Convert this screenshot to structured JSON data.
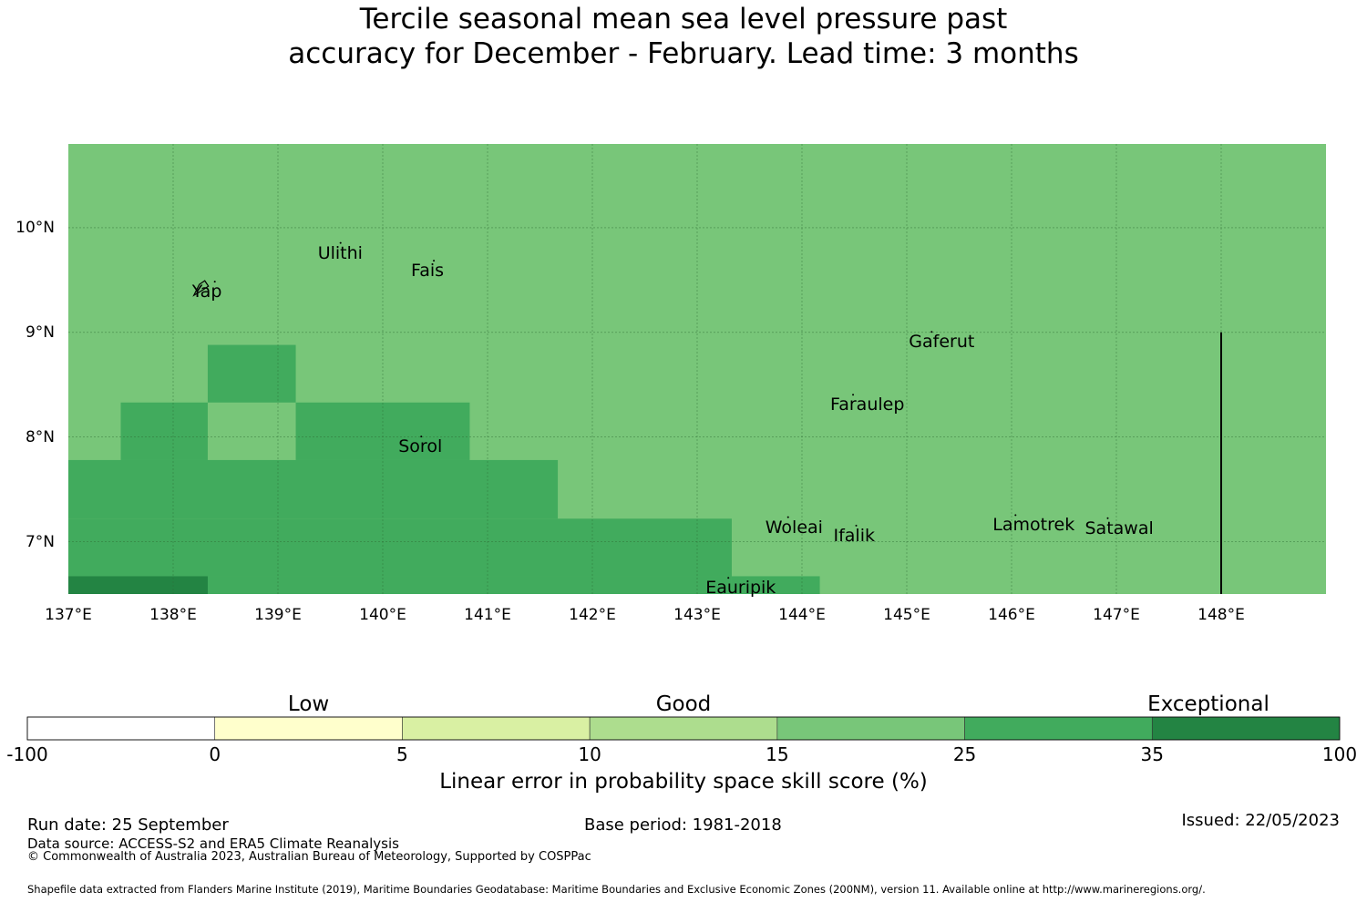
{
  "title": {
    "line1": "Tercile seasonal mean sea level pressure past",
    "line2": "accuracy for December - February. Lead time: 3 months"
  },
  "map": {
    "lon_range": [
      137.0,
      149.0
    ],
    "lat_range": [
      6.5,
      10.8
    ],
    "x_ticks": [
      "137°E",
      "138°E",
      "139°E",
      "140°E",
      "141°E",
      "142°E",
      "143°E",
      "144°E",
      "145°E",
      "146°E",
      "147°E",
      "148°E"
    ],
    "y_ticks": [
      "10°N",
      "9°N",
      "8°N",
      "7°N"
    ],
    "colors": {
      "base": "#78c679",
      "band25": "#41ab5d",
      "band35": "#238443",
      "grid": "#2f6b35",
      "boundary": "#000000"
    },
    "skill_cells": [
      {
        "lon": [
          138.33,
          139.17
        ],
        "lat": [
          8.33,
          8.88
        ],
        "cls": "25-35"
      },
      {
        "lon": [
          137.5,
          138.33
        ],
        "lat": [
          7.78,
          8.33
        ],
        "cls": "25-35"
      },
      {
        "lon": [
          139.17,
          140.83
        ],
        "lat": [
          7.78,
          8.33
        ],
        "cls": "25-35"
      },
      {
        "lon": [
          137.0,
          141.67
        ],
        "lat": [
          7.22,
          7.78
        ],
        "cls": "25-35"
      },
      {
        "lon": [
          137.0,
          143.33
        ],
        "lat": [
          6.67,
          7.22
        ],
        "cls": "25-35"
      },
      {
        "lon": [
          137.0,
          143.33
        ],
        "lat": [
          6.5,
          6.67
        ],
        "cls": "25-35"
      },
      {
        "lon": [
          143.33,
          144.17
        ],
        "lat": [
          6.5,
          6.67
        ],
        "cls": "25-35"
      },
      {
        "lon": [
          137.0,
          138.33
        ],
        "lat": [
          6.5,
          6.67
        ],
        "cls": "35-100"
      }
    ],
    "boundary_line": {
      "lon": 148.0,
      "lat": [
        6.5,
        9.0
      ]
    },
    "places": [
      {
        "name": "Ulithi",
        "lon": 139.38,
        "lat": 9.75
      },
      {
        "name": "Fais",
        "lon": 140.27,
        "lat": 9.58
      },
      {
        "name": "Yap",
        "lon": 138.18,
        "lat": 9.38
      },
      {
        "name": "Gaferut",
        "lon": 145.02,
        "lat": 8.9
      },
      {
        "name": "Faraulep",
        "lon": 144.27,
        "lat": 8.3
      },
      {
        "name": "Sorol",
        "lon": 140.15,
        "lat": 7.9
      },
      {
        "name": "Woleai",
        "lon": 143.65,
        "lat": 7.13
      },
      {
        "name": "Ifalik",
        "lon": 144.3,
        "lat": 7.05
      },
      {
        "name": "Lamotrek",
        "lon": 145.82,
        "lat": 7.15
      },
      {
        "name": "Satawal",
        "lon": 146.7,
        "lat": 7.12
      },
      {
        "name": "Eauripik",
        "lon": 143.08,
        "lat": 6.55
      }
    ]
  },
  "colorbar": {
    "categories": [
      {
        "label": "Low",
        "at_value_index": 1.5
      },
      {
        "label": "Good",
        "at_value_index": 3.5
      },
      {
        "label": "Exceptional",
        "at_value_index": 6.3
      }
    ],
    "ticks": [
      "-100",
      "0",
      "5",
      "10",
      "15",
      "25",
      "35",
      "100"
    ],
    "colors": [
      "#ffffff",
      "#ffffcc",
      "#d9f0a3",
      "#addd8e",
      "#78c679",
      "#41ab5d",
      "#238443"
    ],
    "label": "Linear error in probability space skill score (%)"
  },
  "footer": {
    "run_date": "Run date: 25 September",
    "base_period": "Base period: 1981-2018",
    "issued": "Issued: 22/05/2023",
    "data_source": "Data source: ACCESS-S2 and ERA5 Climate Reanalysis",
    "copyright": "© Commonwealth of Australia 2023, Australian Bureau of Meteorology, Supported by COSPPac",
    "shapefile": "Shapefile data extracted from Flanders Marine Institute (2019), Maritime Boundaries Geodatabase: Maritime Boundaries and Exclusive Economic Zones (200NM), version 11. Available online at http://www.marineregions.org/."
  }
}
